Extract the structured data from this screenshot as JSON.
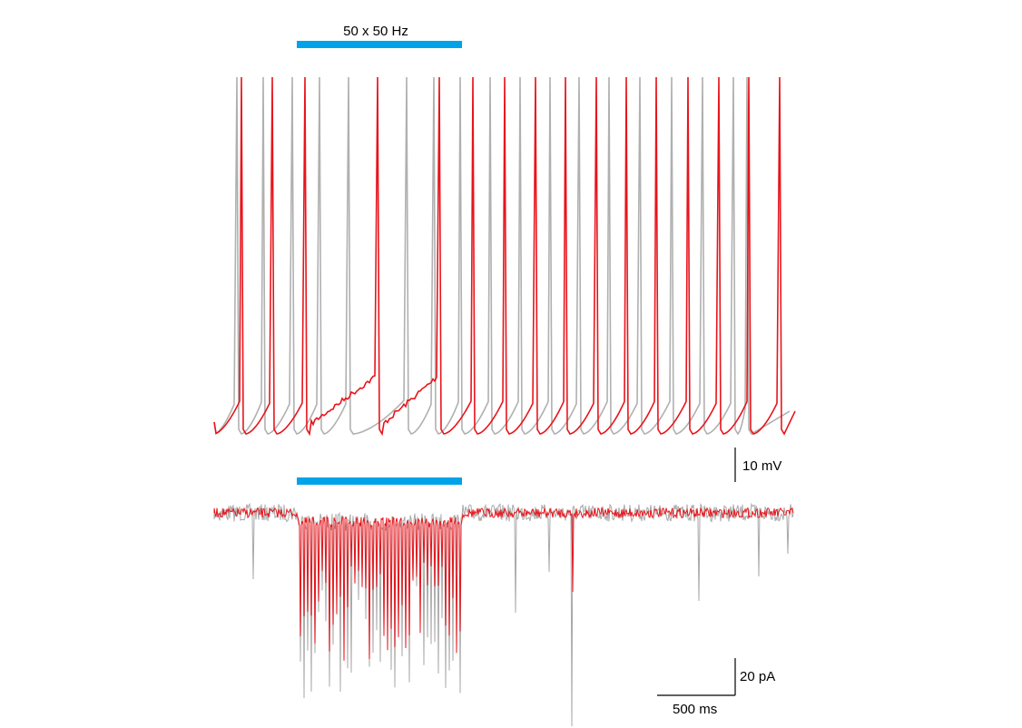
{
  "stimulus_label": "50 x 50 Hz",
  "scale_bars": {
    "voltage": "10 mV",
    "current": "20 pA",
    "time": "500 ms"
  }
}
